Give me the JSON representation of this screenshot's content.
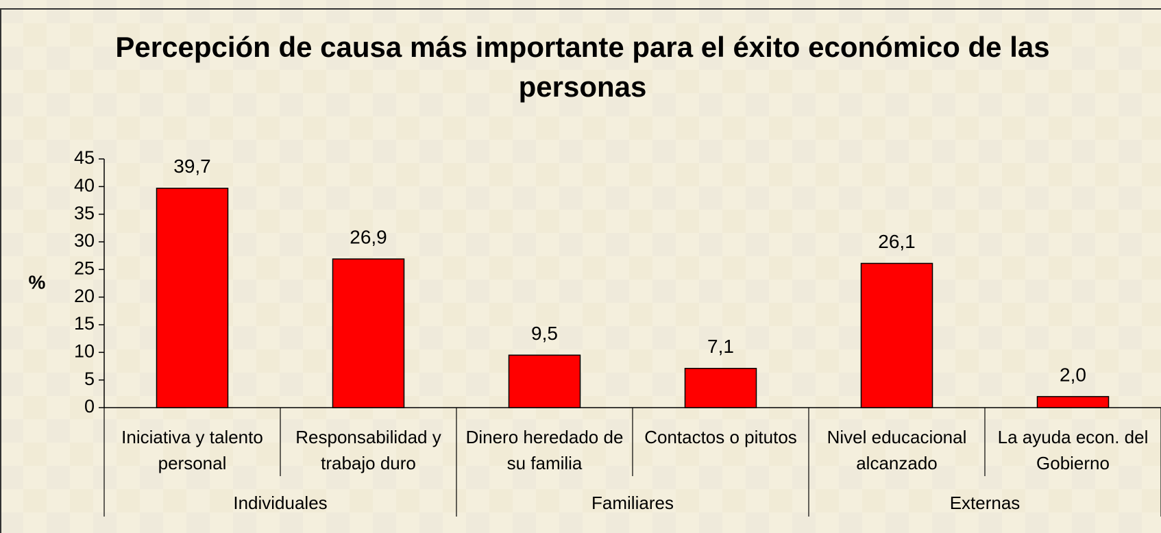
{
  "chart_data": {
    "type": "bar",
    "title": "Percepción de causa más importante para el éxito económico de las personas",
    "y_label": "%",
    "color": "#ff0000",
    "ylim": [
      0,
      45
    ],
    "yticks": [
      0,
      5,
      10,
      15,
      20,
      25,
      30,
      35,
      40,
      45
    ],
    "groups": [
      {
        "name": "Individuales",
        "categories": [
          "Iniciativa y talento personal",
          "Responsabilidad y trabajo duro"
        ],
        "values": [
          39.7,
          26.9
        ],
        "value_labels": [
          "39,7",
          "26,9"
        ]
      },
      {
        "name": "Familiares",
        "categories": [
          "Dinero heredado de su familia",
          "Contactos o pitutos"
        ],
        "values": [
          9.5,
          7.1
        ],
        "value_labels": [
          "9,5",
          "7,1"
        ]
      },
      {
        "name": "Externas",
        "categories": [
          "Nivel educacional alcanzado",
          "La ayuda econ. del Gobierno"
        ],
        "values": [
          26.1,
          2.0
        ],
        "value_labels": [
          "26,1",
          "2,0"
        ]
      }
    ]
  }
}
